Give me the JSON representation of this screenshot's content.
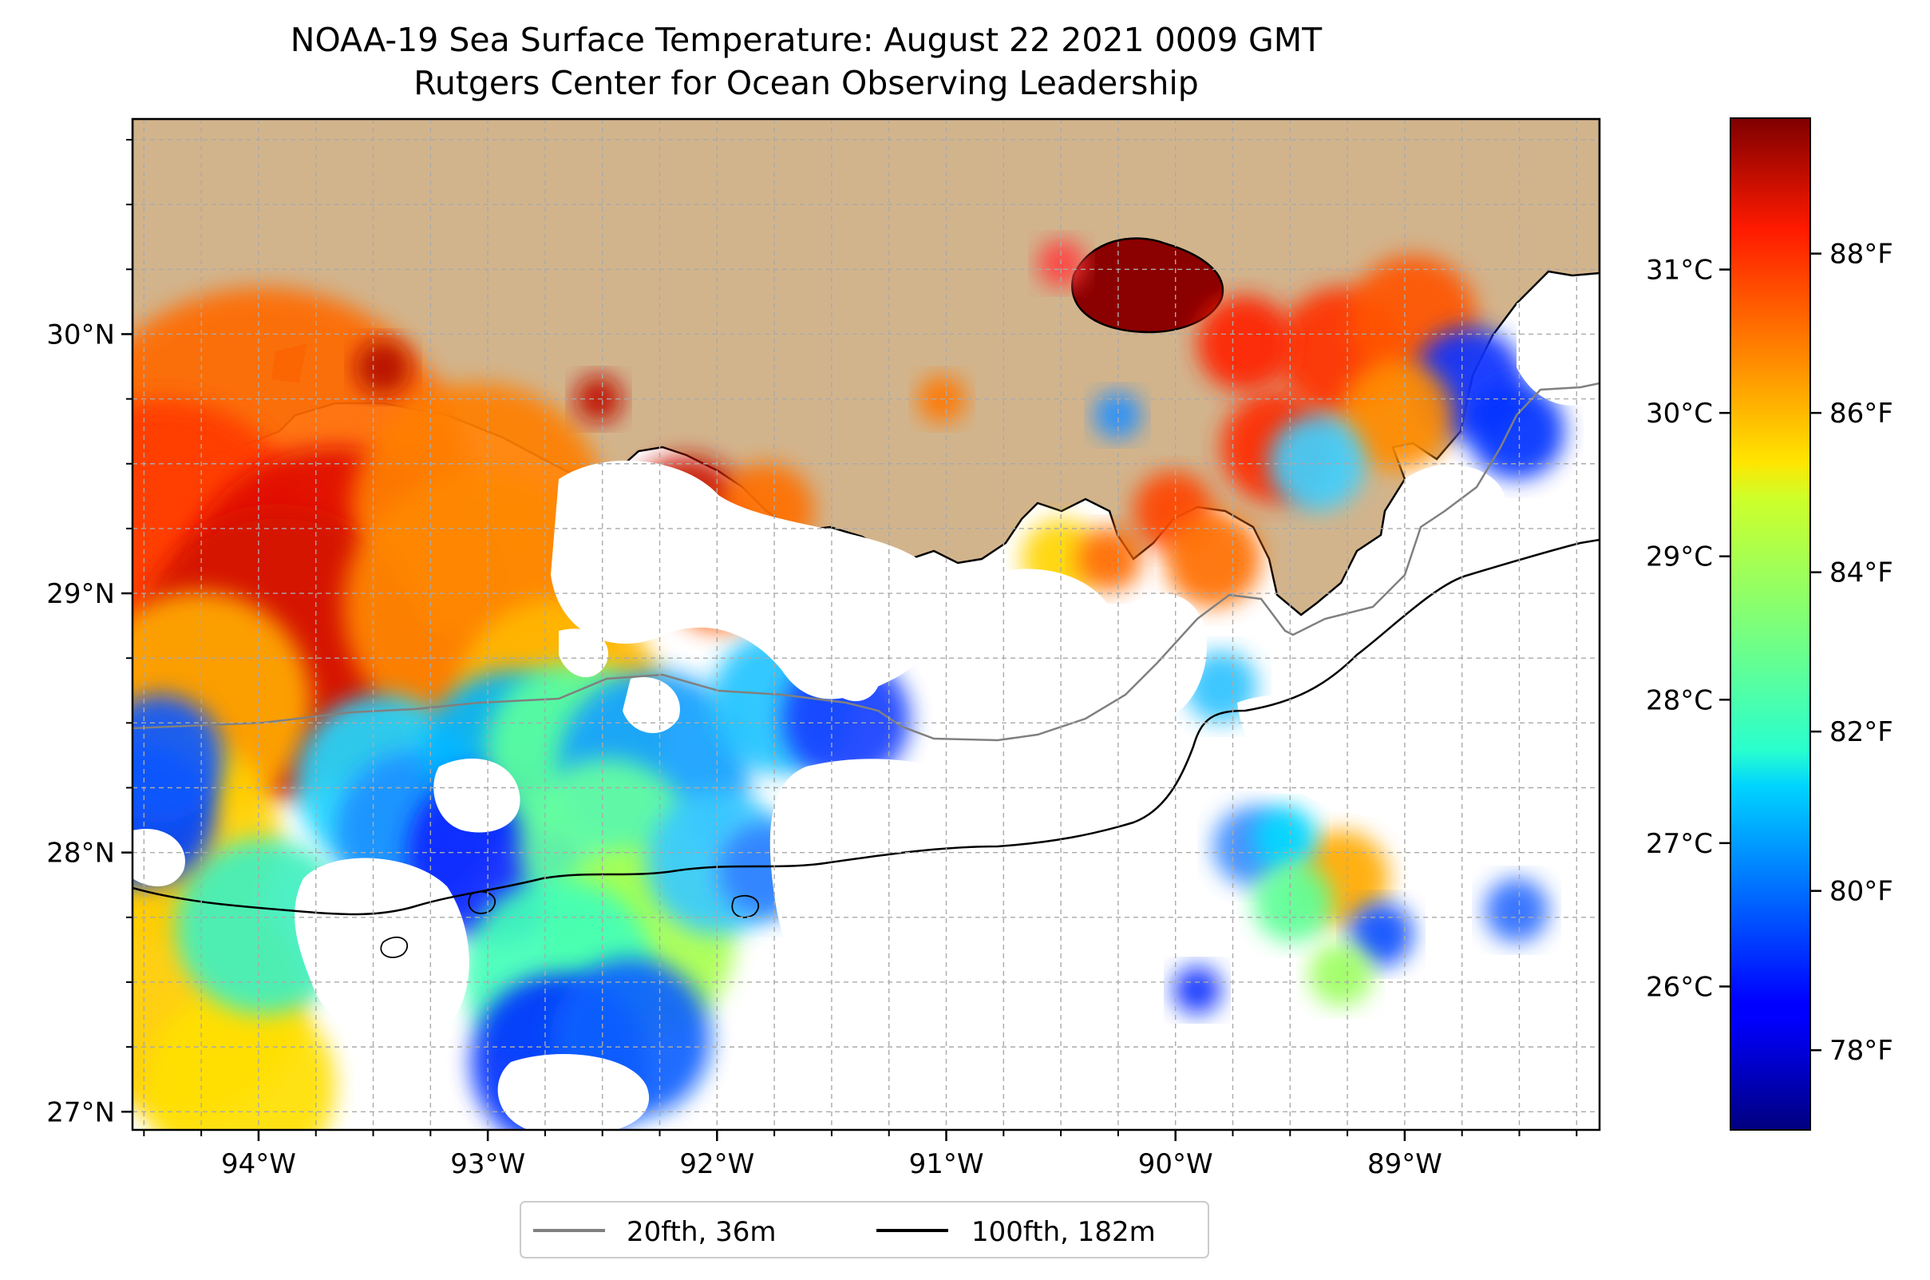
{
  "title_line1": "NOAA-19 Sea Surface Temperature: August 22 2021 0009 GMT",
  "title_line2": "Rutgers Center for Ocean Observing Leadership",
  "map": {
    "lon_range": [
      -94.55,
      -88.15
    ],
    "lat_range": [
      26.93,
      30.83
    ],
    "lon_ticks": [
      {
        "value": -94,
        "label": "94°W"
      },
      {
        "value": -93,
        "label": "93°W"
      },
      {
        "value": -92,
        "label": "92°W"
      },
      {
        "value": -91,
        "label": "91°W"
      },
      {
        "value": -90,
        "label": "90°W"
      },
      {
        "value": -89,
        "label": "89°W"
      }
    ],
    "lat_ticks": [
      {
        "value": 27,
        "label": "27°N"
      },
      {
        "value": 28,
        "label": "28°N"
      },
      {
        "value": 29,
        "label": "29°N"
      },
      {
        "value": 30,
        "label": "30°N"
      }
    ],
    "minor_grid_step_deg": 0.25,
    "grid": true
  },
  "colorbar": {
    "colormap": "jet",
    "range_f": [
      77.0,
      89.7
    ],
    "fahrenheit_ticks": [
      {
        "value": 78,
        "label": "78°F"
      },
      {
        "value": 80,
        "label": "80°F"
      },
      {
        "value": 82,
        "label": "82°F"
      },
      {
        "value": 84,
        "label": "84°F"
      },
      {
        "value": 86,
        "label": "86°F"
      },
      {
        "value": 88,
        "label": "88°F"
      }
    ],
    "celsius_ticks": [
      {
        "value": 26,
        "label": "26°C"
      },
      {
        "value": 27,
        "label": "27°C"
      },
      {
        "value": 28,
        "label": "28°C"
      },
      {
        "value": 29,
        "label": "29°C"
      },
      {
        "value": 30,
        "label": "30°C"
      },
      {
        "value": 31,
        "label": "31°C"
      }
    ]
  },
  "legend": {
    "placement": "bottom-center",
    "items": [
      {
        "label": "20fth, 36m",
        "color": "#808080"
      },
      {
        "label": "100fth, 182m",
        "color": "#000000"
      }
    ]
  },
  "colors": {
    "land": "#d2b48c",
    "no_data": "#ffffff",
    "isobath_20fth": "#808080",
    "isobath_100fth": "#000000"
  }
}
